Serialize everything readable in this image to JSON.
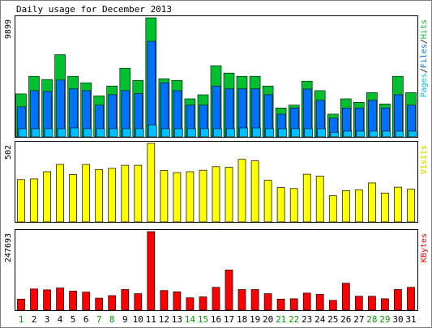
{
  "title": "Daily usage for December 2013",
  "colors": {
    "background": "#ffffff",
    "frame": "#000000",
    "hits": "#00c030",
    "files": "#0070ff",
    "pages": "#00c0ff",
    "visits": "#ffff00",
    "kbytes": "#ff0000",
    "weekday_label": "#000000",
    "weekend_label": "#00a000"
  },
  "chart_data": [
    {
      "type": "bar",
      "panel": "usage",
      "max_label": "9899",
      "ylim": [
        0,
        9899
      ],
      "side_label_parts": [
        {
          "text": "Pages",
          "color": "#00c0ff"
        },
        {
          "text": "/",
          "color": "#000000"
        },
        {
          "text": "Files",
          "color": "#0070ff"
        },
        {
          "text": "/",
          "color": "#000000"
        },
        {
          "text": "Hits",
          "color": "#00c030"
        }
      ],
      "categories": [
        "1",
        "2",
        "3",
        "4",
        "5",
        "6",
        "7",
        "8",
        "9",
        "10",
        "11",
        "12",
        "13",
        "14",
        "15",
        "16",
        "17",
        "18",
        "19",
        "20",
        "21",
        "22",
        "23",
        "24",
        "25",
        "26",
        "27",
        "28",
        "29",
        "30",
        "31"
      ],
      "weekend": [
        1,
        7,
        8,
        14,
        15,
        21,
        22,
        28,
        29
      ],
      "series": [
        {
          "name": "Hits",
          "color": "#00c030",
          "values": [
            3575,
            5036,
            4768,
            6833,
            5036,
            4495,
            3407,
            4226,
            5713,
            4699,
            9899,
            4835,
            4699,
            3167,
            3505,
            5917,
            5308,
            5036,
            5036,
            4226,
            2405,
            2641,
            4632,
            3847,
            1895,
            3167,
            2877,
            3675,
            2741,
            5036,
            3675
          ]
        },
        {
          "name": "Files",
          "color": "#0070ff",
          "values": [
            2505,
            3845,
            3775,
            4730,
            4000,
            3845,
            2641,
            3506,
            3845,
            3600,
            7945,
            4495,
            3845,
            2641,
            2641,
            4226,
            4000,
            4000,
            4000,
            3506,
            1895,
            2405,
            3980,
            3036,
            1564,
            2405,
            2405,
            3036,
            2405,
            3506,
            2641
          ]
        },
        {
          "name": "Pages",
          "color": "#00c0ff",
          "values": [
            680,
            680,
            680,
            680,
            741,
            680,
            680,
            680,
            680,
            680,
            1000,
            680,
            680,
            680,
            680,
            680,
            680,
            741,
            741,
            680,
            680,
            680,
            680,
            680,
            374,
            480,
            480,
            480,
            480,
            480,
            480
          ]
        }
      ]
    },
    {
      "type": "bar",
      "panel": "visits",
      "max_label": "502",
      "ylim": [
        0,
        502
      ],
      "side_label_parts": [
        {
          "text": "Visits",
          "color": "#ffff00"
        }
      ],
      "categories": [
        "1",
        "2",
        "3",
        "4",
        "5",
        "6",
        "7",
        "8",
        "9",
        "10",
        "11",
        "12",
        "13",
        "14",
        "15",
        "16",
        "17",
        "18",
        "19",
        "20",
        "21",
        "22",
        "23",
        "24",
        "25",
        "26",
        "27",
        "28",
        "29",
        "30",
        "31"
      ],
      "weekend": [
        1,
        7,
        8,
        14,
        15,
        21,
        22,
        28,
        29
      ],
      "series": [
        {
          "name": "Visits",
          "color": "#ffff00",
          "values": [
            270,
            275,
            321,
            367,
            303,
            367,
            335,
            342,
            362,
            362,
            502,
            328,
            315,
            321,
            330,
            353,
            349,
            400,
            390,
            266,
            220,
            213,
            305,
            293,
            167,
            200,
            205,
            249,
            184,
            222,
            209
          ]
        }
      ]
    },
    {
      "type": "bar",
      "panel": "kbytes",
      "max_label": "247693",
      "ylim": [
        0,
        247693
      ],
      "side_label_parts": [
        {
          "text": "KBytes",
          "color": "#ff0000"
        }
      ],
      "categories": [
        "1",
        "2",
        "3",
        "4",
        "5",
        "6",
        "7",
        "8",
        "9",
        "10",
        "11",
        "12",
        "13",
        "14",
        "15",
        "16",
        "17",
        "18",
        "19",
        "20",
        "21",
        "22",
        "23",
        "24",
        "25",
        "26",
        "27",
        "28",
        "29",
        "30",
        "31"
      ],
      "weekend": [
        1,
        7,
        8,
        14,
        15,
        21,
        22,
        28,
        29
      ],
      "series": [
        {
          "name": "KBytes",
          "color": "#ff0000",
          "values": [
            35000,
            67000,
            64000,
            70000,
            60000,
            57000,
            38000,
            46000,
            65000,
            52000,
            247693,
            62000,
            58000,
            39000,
            42000,
            72000,
            127000,
            65000,
            65000,
            52000,
            35000,
            36000,
            54000,
            50000,
            31000,
            85000,
            44000,
            44000,
            36000,
            65000,
            72000
          ]
        }
      ]
    }
  ]
}
